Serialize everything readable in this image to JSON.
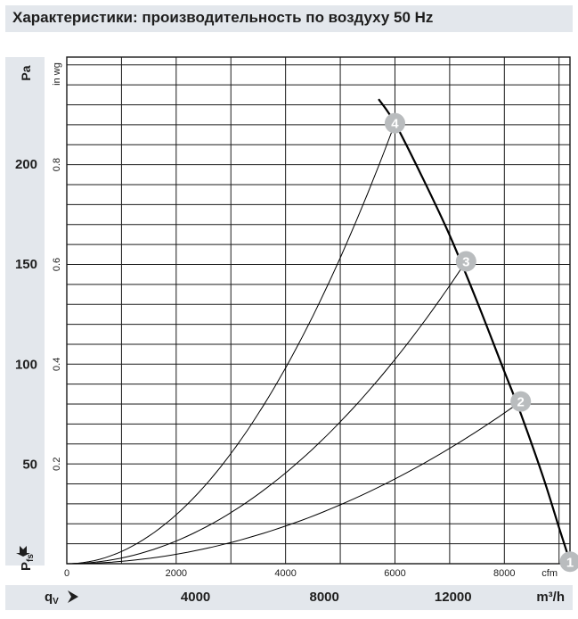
{
  "title": "Характеристики: производительность по воздуху 50 Hz",
  "chart_data": {
    "type": "line",
    "grid": true,
    "pa_axis": {
      "unit": "Pa",
      "range": [
        0,
        253
      ],
      "ticks": [
        {
          "value": 50,
          "label": "50"
        },
        {
          "value": 100,
          "label": "100"
        },
        {
          "value": 150,
          "label": "150"
        },
        {
          "value": 200,
          "label": "200"
        }
      ]
    },
    "inwg_axis": {
      "unit": "in wg",
      "ticks": [
        {
          "value": 0.2,
          "label": "0.2"
        },
        {
          "value": 0.4,
          "label": "0.4"
        },
        {
          "value": 0.6,
          "label": "0.6"
        },
        {
          "value": 0.8,
          "label": "0.8"
        }
      ]
    },
    "cfm_axis": {
      "unit": "cfm",
      "range": [
        0,
        9200
      ],
      "ticks": [
        {
          "value": 0,
          "label": "0"
        },
        {
          "value": 2000,
          "label": "2000"
        },
        {
          "value": 4000,
          "label": "4000"
        },
        {
          "value": 6000,
          "label": "6000"
        },
        {
          "value": 8000,
          "label": "8000"
        }
      ]
    },
    "m3h_axis": {
      "unit": "m³/h",
      "ticks": [
        {
          "value": 4000,
          "label": "4000"
        },
        {
          "value": 8000,
          "label": "8000"
        },
        {
          "value": 12000,
          "label": "12000"
        }
      ]
    },
    "y_symbol": "P",
    "y_symbol_sub": "fs",
    "x_symbol": "q",
    "x_symbol_sub": "V",
    "fan_curve": [
      {
        "cfm": 5700,
        "pa": 232
      },
      {
        "cfm": 6000,
        "pa": 220
      },
      {
        "cfm": 6500,
        "pa": 193
      },
      {
        "cfm": 7000,
        "pa": 164
      },
      {
        "cfm": 7500,
        "pa": 131
      },
      {
        "cfm": 8000,
        "pa": 96
      },
      {
        "cfm": 8300,
        "pa": 75
      },
      {
        "cfm": 8700,
        "pa": 44
      },
      {
        "cfm": 9000,
        "pa": 18
      },
      {
        "cfm": 9200,
        "pa": 1
      }
    ],
    "system_curves": [
      {
        "name": "4",
        "end_cfm": 6000,
        "end_pa": 220
      },
      {
        "name": "3",
        "end_cfm": 7300,
        "end_pa": 151
      },
      {
        "name": "2",
        "end_cfm": 8300,
        "end_pa": 81
      }
    ],
    "operating_points": [
      {
        "label": "4",
        "cfm": 6000,
        "pa": 220
      },
      {
        "label": "3",
        "cfm": 7300,
        "pa": 151
      },
      {
        "label": "2",
        "cfm": 8300,
        "pa": 81
      },
      {
        "label": "1",
        "cfm": 9200,
        "pa": 1
      }
    ],
    "colors": {
      "grid": "#1a1a1a",
      "curve": "#000000",
      "marker": "#b9bcbe",
      "marker_text": "#ffffff"
    }
  }
}
